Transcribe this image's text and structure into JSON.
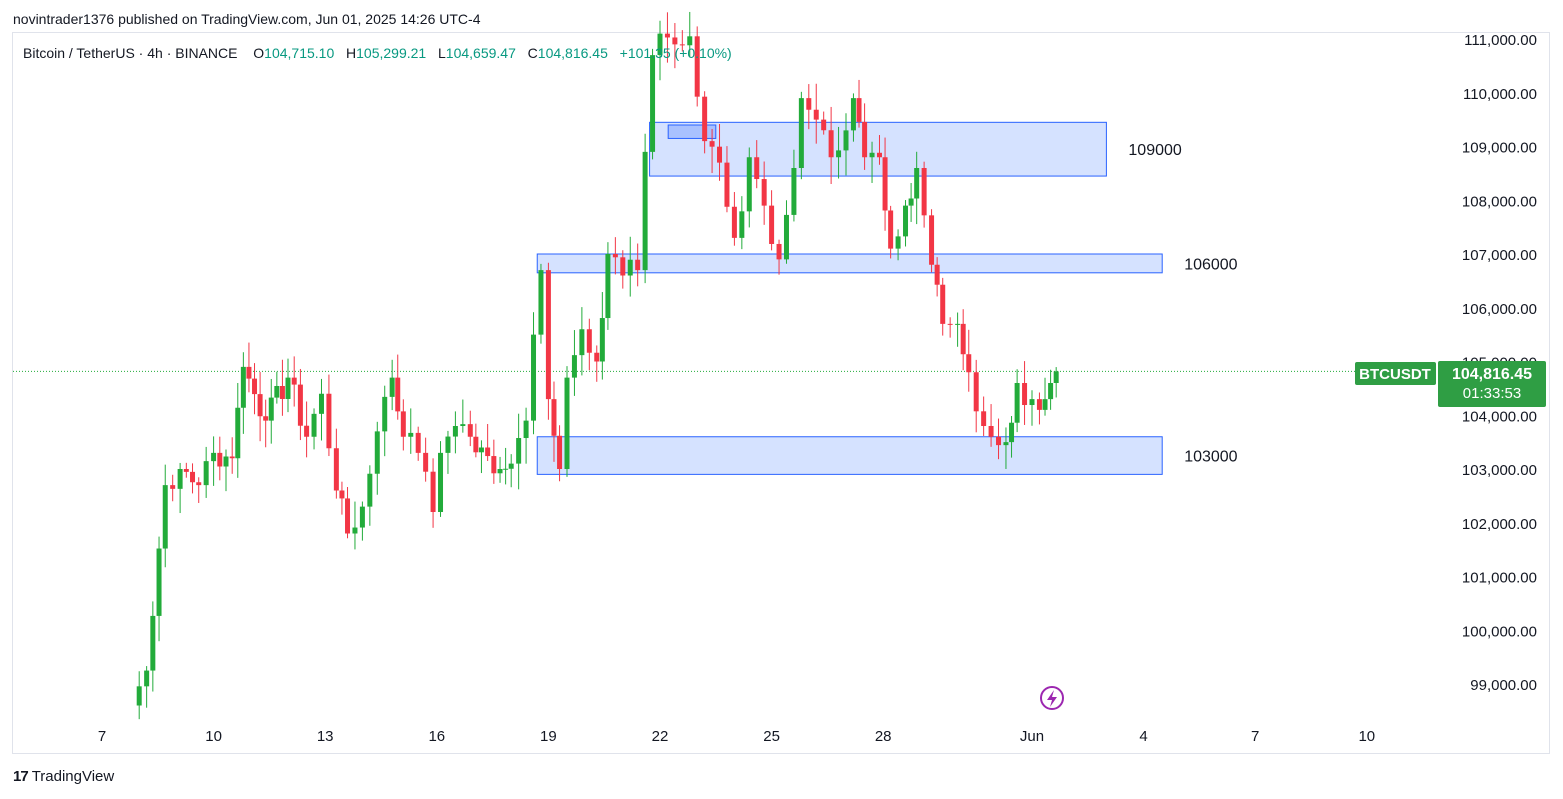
{
  "header": {
    "published_line": "novintrader1376 published on TradingView.com, Jun 01, 2025 14:26 UTC-4"
  },
  "legend": {
    "symbol": "Bitcoin / TetherUS · 4h · BINANCE",
    "open_label": "O",
    "open": "104,715.10",
    "high_label": "H",
    "high": "105,299.21",
    "low_label": "L",
    "low": "104,659.47",
    "close_label": "C",
    "close": "104,816.45",
    "change": "+101.35 (+0.10%)"
  },
  "price_tag": {
    "ticker": "BTCUSDT",
    "price": "104,816.45",
    "countdown": "01:33:53"
  },
  "footer": {
    "brand": "TradingView",
    "logo_text": "17"
  },
  "colors": {
    "up": "#089981",
    "down": "#f23645",
    "up_candle": "#22ab3a",
    "down_candle": "#f23645",
    "zone_fill": "#d3e0ff",
    "zone_stroke": "#2962ff",
    "last_price_line": "#22ab3a",
    "tag_bg": "#2f9e44",
    "lightning_icon": "#9c27b0"
  },
  "chart_data": {
    "type": "candlestick",
    "interval": "4h",
    "ylim": [
      98400,
      111200
    ],
    "y_ticks": [
      99000,
      100000,
      101000,
      102000,
      103000,
      104000,
      105000,
      106000,
      107000,
      108000,
      109000,
      110000,
      111000
    ],
    "y_tick_labels": [
      "99,000.00",
      "100,000.00",
      "101,000.00",
      "102,000.00",
      "103,000.00",
      "104,000.00",
      "105,000.00",
      "106,000.00",
      "107,000.00",
      "108,000.00",
      "109,000.00",
      "110,000.00",
      "111,000.00"
    ],
    "x_ticks": [
      "7",
      "10",
      "13",
      "16",
      "19",
      "22",
      "25",
      "28",
      "Jun",
      "4",
      "7",
      "10"
    ],
    "x_tick_days": [
      7,
      10,
      13,
      16,
      19,
      22,
      25,
      28,
      32,
      35,
      38,
      41
    ],
    "last_price": 104816.45,
    "zones": [
      {
        "label": "109000",
        "low": 108450,
        "high": 109450,
        "from_day": 21.72,
        "to_day": 34.0
      },
      {
        "label": "106000",
        "low": 106650,
        "high": 107000,
        "from_day": 18.7,
        "to_day": 35.5
      },
      {
        "label": "103000",
        "low": 102900,
        "high": 103600,
        "from_day": 18.7,
        "to_day": 35.5
      }
    ],
    "small_zone": {
      "low": 109150,
      "high": 109400,
      "from_day": 22.22,
      "to_day": 23.5
    },
    "anchor_closes": [
      [
        7.8,
        98600
      ],
      [
        8.2,
        99250
      ],
      [
        8.7,
        102700
      ],
      [
        9.1,
        103000
      ],
      [
        9.6,
        102700
      ],
      [
        10.0,
        103300
      ],
      [
        10.5,
        103200
      ],
      [
        10.8,
        104900
      ],
      [
        11.4,
        103900
      ],
      [
        12.0,
        104700
      ],
      [
        12.5,
        103600
      ],
      [
        12.9,
        104400
      ],
      [
        13.3,
        102600
      ],
      [
        13.6,
        101800
      ],
      [
        14.0,
        102300
      ],
      [
        14.4,
        103700
      ],
      [
        14.8,
        104700
      ],
      [
        15.1,
        103600
      ],
      [
        15.5,
        103300
      ],
      [
        15.9,
        102200
      ],
      [
        16.1,
        103300
      ],
      [
        16.5,
        103800
      ],
      [
        16.9,
        103600
      ],
      [
        17.2,
        103400
      ],
      [
        17.7,
        103000
      ],
      [
        18.0,
        103100
      ],
      [
        18.4,
        103900
      ],
      [
        18.6,
        105500
      ],
      [
        18.8,
        106700
      ],
      [
        19.0,
        104300
      ],
      [
        19.3,
        103000
      ],
      [
        19.5,
        104700
      ],
      [
        19.9,
        105600
      ],
      [
        20.3,
        105000
      ],
      [
        20.6,
        107000
      ],
      [
        21.0,
        106600
      ],
      [
        21.4,
        106700
      ],
      [
        21.6,
        108900
      ],
      [
        21.8,
        110700
      ],
      [
        22.0,
        111100
      ],
      [
        22.4,
        110900
      ],
      [
        22.8,
        111050
      ],
      [
        23.2,
        109100
      ],
      [
        23.6,
        108700
      ],
      [
        24.0,
        107300
      ],
      [
        24.4,
        108800
      ],
      [
        24.8,
        107900
      ],
      [
        25.2,
        106900
      ],
      [
        25.6,
        108600
      ],
      [
        25.8,
        109900
      ],
      [
        26.2,
        109500
      ],
      [
        26.6,
        108800
      ],
      [
        27.0,
        109300
      ],
      [
        27.2,
        109900
      ],
      [
        27.5,
        108800
      ],
      [
        27.9,
        108800
      ],
      [
        28.2,
        107100
      ],
      [
        28.6,
        107900
      ],
      [
        28.9,
        108600
      ],
      [
        29.3,
        106800
      ],
      [
        29.6,
        105700
      ],
      [
        30.0,
        105700
      ],
      [
        30.3,
        104800
      ],
      [
        30.7,
        103800
      ],
      [
        30.9,
        103600
      ],
      [
        31.3,
        103500
      ],
      [
        31.6,
        104600
      ],
      [
        32.0,
        104300
      ],
      [
        32.2,
        104100
      ],
      [
        32.5,
        104600
      ],
      [
        32.65,
        104816
      ]
    ]
  }
}
